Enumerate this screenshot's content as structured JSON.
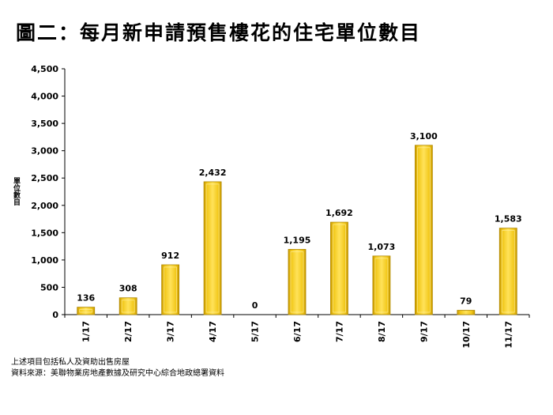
{
  "title": "圖二：每月新申請預售樓花的住宅單位數目",
  "chart_data": {
    "type": "bar",
    "categories": [
      "1/17",
      "2/17",
      "3/17",
      "4/17",
      "5/17",
      "6/17",
      "7/17",
      "8/17",
      "9/17",
      "10/17",
      "11/17"
    ],
    "values": [
      136,
      308,
      912,
      2432,
      0,
      1195,
      1692,
      1073,
      3100,
      79,
      1583
    ],
    "value_labels": [
      "136",
      "308",
      "912",
      "2,432",
      "0",
      "1,195",
      "1,692",
      "1,073",
      "3,100",
      "79",
      "1,583"
    ],
    "ylabel": "單位數目",
    "xlabel": "",
    "ylim": [
      0,
      4500
    ],
    "yticks": [
      0,
      500,
      1000,
      1500,
      2000,
      2500,
      3000,
      3500,
      4000,
      4500
    ],
    "ytick_labels": [
      "0",
      "500",
      "1,000",
      "1,500",
      "2,000",
      "2,500",
      "3,000",
      "3,500",
      "4,000",
      "4,500"
    ],
    "bar_color": "#F2C81A",
    "grid": false,
    "legend": "none"
  },
  "notes": [
    "上述項目包括私人及資助出售房屋",
    "資料來源：美聯物業房地產數據及研究中心綜合地政總署資料"
  ]
}
